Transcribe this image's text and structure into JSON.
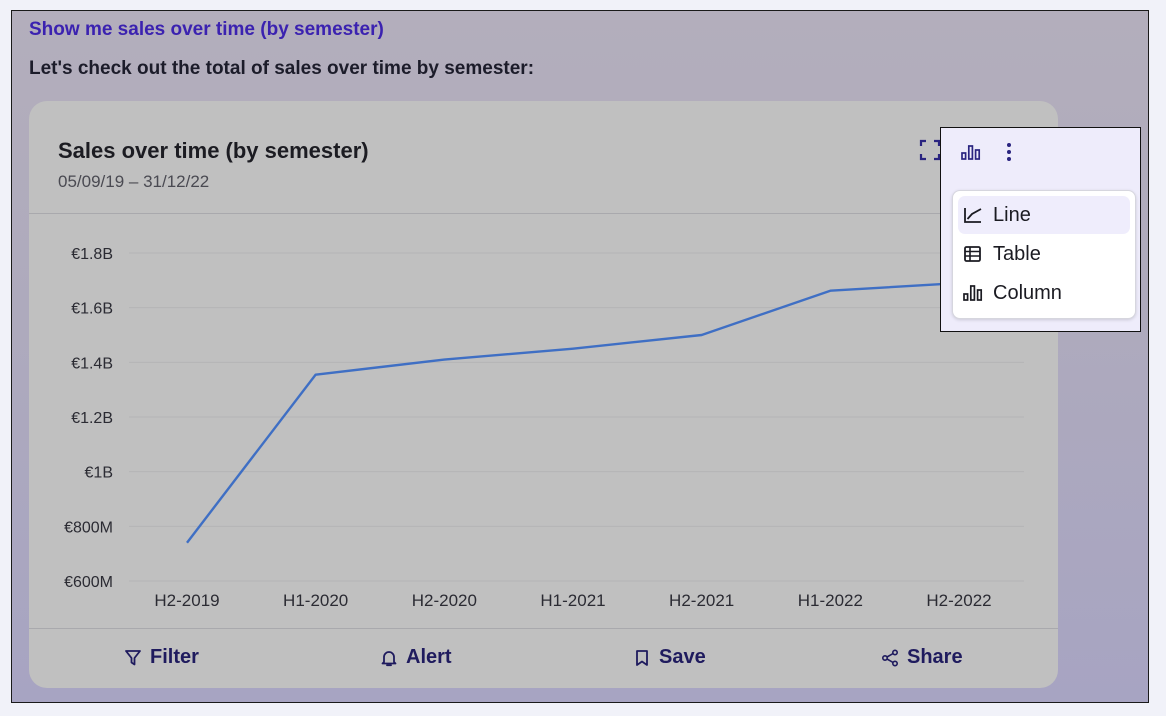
{
  "conversation": {
    "question": "Show me sales over time (by semester)",
    "answer": "Let's check out the total of sales over time by semester:"
  },
  "card": {
    "title": "Sales over time (by semester)",
    "date_range": "05/09/19 – 31/12/22",
    "icons": [
      "fullscreen-icon",
      "column-chart-icon",
      "more-vertical-icon"
    ]
  },
  "chart_data": {
    "type": "line",
    "categories": [
      "H2-2019",
      "H1-2020",
      "H2-2020",
      "H1-2021",
      "H2-2021",
      "H1-2022",
      "H2-2022"
    ],
    "series": [
      {
        "values": [
          740000000,
          1355000000,
          1410000000,
          1450000000,
          1500000000,
          1662000000,
          1690000000
        ]
      }
    ],
    "y_ticks": [
      "€600M",
      "€800M",
      "€1B",
      "€1.2B",
      "€1.4B",
      "€1.6B",
      "€1.8B"
    ],
    "ylim": [
      600000000,
      1800000000
    ],
    "grid": true,
    "line_color": "#3f6fc4"
  },
  "actions": {
    "filter": "Filter",
    "alert": "Alert",
    "save": "Save",
    "share": "Share"
  },
  "menu": {
    "items": [
      {
        "label": "Line",
        "icon": "line-chart-icon",
        "active": true
      },
      {
        "label": "Table",
        "icon": "table-icon",
        "active": false
      },
      {
        "label": "Column",
        "icon": "column-chart-icon",
        "active": false
      }
    ]
  },
  "colors": {
    "accent": "#3b22b0",
    "action_text": "#1f1b5e",
    "menu_highlight": "#efedfc"
  }
}
